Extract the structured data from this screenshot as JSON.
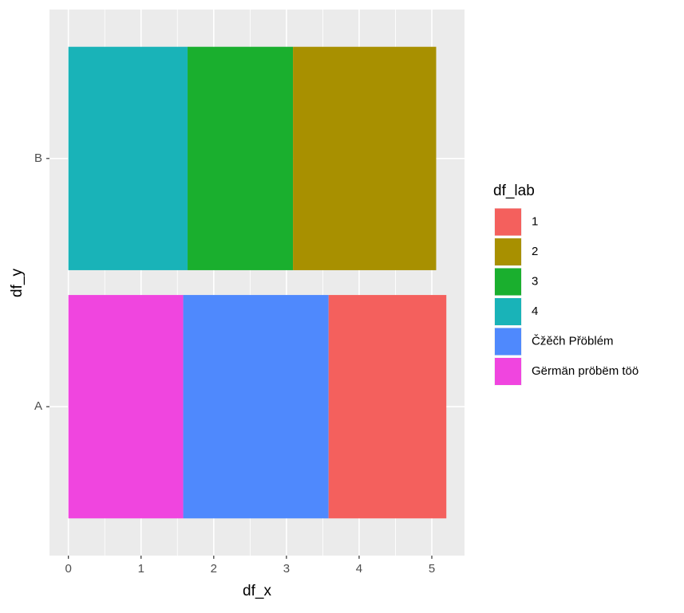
{
  "chart_data": {
    "type": "stacked-bar-horizontal",
    "x_label": "df_x",
    "y_label": "df_y",
    "legend_title": "df_lab",
    "categories": [
      "A",
      "B"
    ],
    "series": [
      {
        "name": "1",
        "color": "#f4605d",
        "values": [
          1.62,
          null
        ]
      },
      {
        "name": "2",
        "color": "#a89000",
        "values": [
          null,
          1.97
        ]
      },
      {
        "name": "3",
        "color": "#1aaf2e",
        "values": [
          null,
          1.45
        ]
      },
      {
        "name": "4",
        "color": "#19b3b8",
        "values": [
          null,
          1.64
        ]
      },
      {
        "name": "Čžěčh Přöblém",
        "color": "#4f89fd",
        "values": [
          2.0,
          null
        ]
      },
      {
        "name": "Gërmän pröbëm töö",
        "color": "#f045df",
        "values": [
          1.58,
          null
        ]
      }
    ],
    "xlim": [
      -0.26,
      5.45
    ],
    "xticks": [
      0,
      1,
      2,
      3,
      4,
      5
    ],
    "grid": true,
    "legend": "right"
  }
}
